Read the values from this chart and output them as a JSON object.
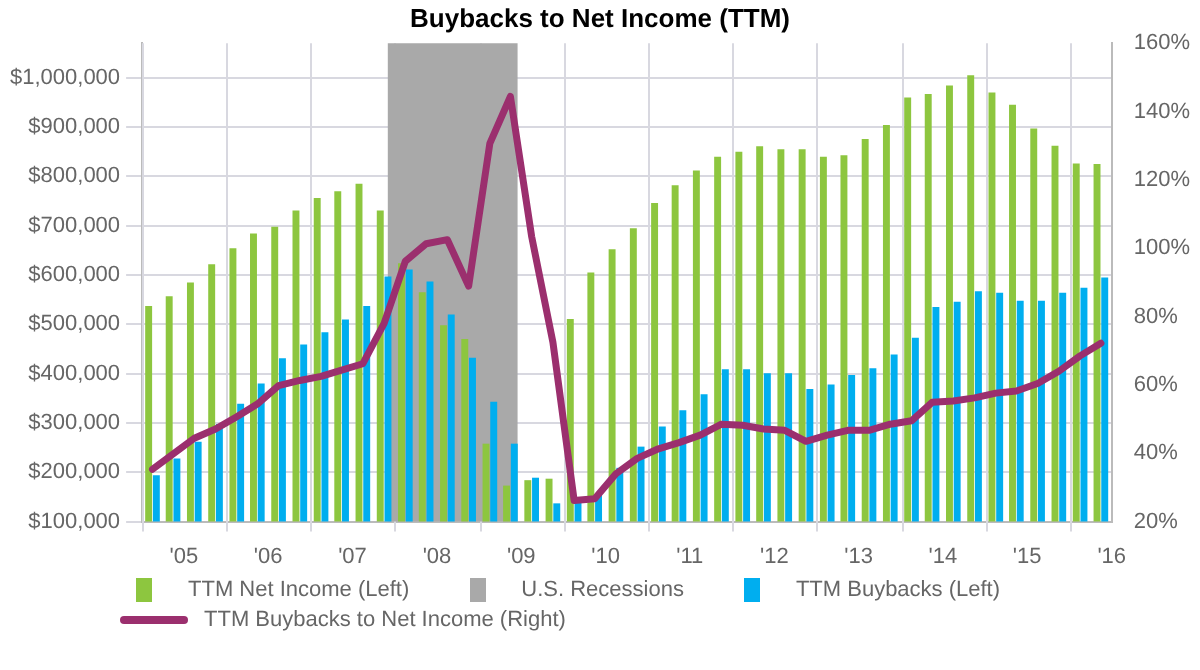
{
  "chart_data": {
    "type": "bar",
    "title": "Buybacks to Net Income (TTM)",
    "x": [
      "2005-02-15",
      "2005-05-15",
      "2005-08-15",
      "2005-11-15",
      "2006-02-15",
      "2006-05-15",
      "2006-08-15",
      "2006-11-15",
      "2007-02-15",
      "2007-05-15",
      "2007-08-15",
      "2007-11-15",
      "2008-02-15",
      "2008-05-15",
      "2008-08-15",
      "2008-11-15",
      "2009-02-15",
      "2009-05-15",
      "2009-08-15",
      "2009-11-15",
      "2010-02-15",
      "2010-05-15",
      "2010-08-15",
      "2010-11-15",
      "2011-02-15",
      "2011-05-15",
      "2011-08-15",
      "2011-11-15",
      "2012-02-15",
      "2012-05-15",
      "2012-08-15",
      "2012-11-15",
      "2013-02-15",
      "2013-05-15",
      "2013-08-15",
      "2013-11-15",
      "2014-02-15",
      "2014-05-15",
      "2014-08-15",
      "2014-11-15",
      "2015-02-15",
      "2015-05-15",
      "2015-08-15",
      "2015-11-15",
      "2016-02-15",
      "2016-05-15"
    ],
    "series": [
      {
        "name": "TTM Net Income (Left)",
        "color": "#8dc63f",
        "values": [
          537000,
          557000,
          585000,
          622000,
          654000,
          684000,
          698000,
          731000,
          756000,
          770000,
          785000,
          731000,
          624000,
          565000,
          498000,
          470000,
          258000,
          173000,
          184000,
          187000,
          511000,
          605000,
          652000,
          695000,
          746000,
          782000,
          812000,
          840000,
          850000,
          861000,
          855000,
          855000,
          840000,
          843000,
          876000,
          904000,
          960000,
          967000,
          984000,
          1005000,
          970000,
          945000,
          897000,
          862000,
          826000,
          825000
        ]
      },
      {
        "name": "TTM Buybacks (Left)",
        "color": "#00aeef",
        "values": [
          194000,
          228000,
          262000,
          298000,
          339000,
          380000,
          431000,
          459000,
          484000,
          510000,
          537000,
          597000,
          611000,
          587000,
          520000,
          432000,
          343000,
          258000,
          189000,
          137000,
          140000,
          158000,
          209000,
          252000,
          293000,
          326000,
          358000,
          409000,
          409000,
          401000,
          401000,
          369000,
          378000,
          397000,
          411000,
          439000,
          473000,
          535000,
          546000,
          567000,
          564000,
          548000,
          548000,
          564000,
          574000,
          595000
        ]
      },
      {
        "name": "TTM Buybacks to Net Income (Right)",
        "type": "line",
        "axis": "y2",
        "color": "#9b2f6e",
        "values": [
          35.3,
          39.8,
          44.4,
          47.1,
          50.7,
          54.4,
          59.8,
          61.3,
          62.5,
          64.3,
          66.2,
          78,
          96.2,
          101.3,
          102.5,
          88.9,
          130.7,
          144.4,
          103.4,
          72.5,
          26.2,
          26.7,
          34,
          38.5,
          41.3,
          43.1,
          45.3,
          48.5,
          48.2,
          47.1,
          46.7,
          43.5,
          45.3,
          46.7,
          46.7,
          48.5,
          49.5,
          54.9,
          55.3,
          56.2,
          57.6,
          58.2,
          60.4,
          64,
          68.5,
          72.2
        ]
      }
    ],
    "bands": [
      {
        "axis": "x",
        "from": "2007-12-01",
        "to": "2009-06-15",
        "label": "U.S. Recessions",
        "color": "#a9a9a9"
      }
    ],
    "xlim": [
      "2005-01-01",
      "2016-07-01"
    ],
    "xticks": [
      {
        "value": "2005-01-01",
        "label": null
      },
      {
        "value": "2005-07-01",
        "label": "'05"
      },
      {
        "value": "2006-01-01",
        "label": null
      },
      {
        "value": "2006-07-01",
        "label": "'06"
      },
      {
        "value": "2007-01-01",
        "label": null
      },
      {
        "value": "2007-07-01",
        "label": "'07"
      },
      {
        "value": "2008-01-01",
        "label": null
      },
      {
        "value": "2008-07-01",
        "label": "'08"
      },
      {
        "value": "2009-01-01",
        "label": null
      },
      {
        "value": "2009-07-01",
        "label": "'09"
      },
      {
        "value": "2010-01-01",
        "label": null
      },
      {
        "value": "2010-07-01",
        "label": "'10"
      },
      {
        "value": "2011-01-01",
        "label": null
      },
      {
        "value": "2011-07-01",
        "label": "'11"
      },
      {
        "value": "2012-01-01",
        "label": null
      },
      {
        "value": "2012-07-01",
        "label": "'12"
      },
      {
        "value": "2013-01-01",
        "label": null
      },
      {
        "value": "2013-07-01",
        "label": "'13"
      },
      {
        "value": "2014-01-01",
        "label": null
      },
      {
        "value": "2014-07-01",
        "label": "'14"
      },
      {
        "value": "2015-01-01",
        "label": null
      },
      {
        "value": "2015-07-01",
        "label": "'15"
      },
      {
        "value": "2016-01-01",
        "label": null
      },
      {
        "value": "2016-07-01",
        "label": "'16"
      }
    ],
    "ylim": [
      100000,
      1070000
    ],
    "yticks": [
      {
        "value": 100000,
        "label": "$100,000"
      },
      {
        "value": 200000,
        "label": "$200,000"
      },
      {
        "value": 300000,
        "label": "$300,000"
      },
      {
        "value": 400000,
        "label": "$400,000"
      },
      {
        "value": 500000,
        "label": "$500,000"
      },
      {
        "value": 600000,
        "label": "$600,000"
      },
      {
        "value": 700000,
        "label": "$700,000"
      },
      {
        "value": 800000,
        "label": "$800,000"
      },
      {
        "value": 900000,
        "label": "$900,000"
      },
      {
        "value": 1000000,
        "label": "$1,000,000"
      }
    ],
    "y2lim": [
      20,
      160
    ],
    "y2ticks": [
      {
        "value": 20,
        "label": "20%"
      },
      {
        "value": 40,
        "label": "40%"
      },
      {
        "value": 60,
        "label": "60%"
      },
      {
        "value": 80,
        "label": "80%"
      },
      {
        "value": 100,
        "label": "100%"
      },
      {
        "value": 120,
        "label": "120%"
      },
      {
        "value": 140,
        "label": "140%"
      },
      {
        "value": 160,
        "label": "160%"
      }
    ],
    "grid": true,
    "legend": "bottom",
    "marker": "none",
    "line_style": "solid"
  }
}
